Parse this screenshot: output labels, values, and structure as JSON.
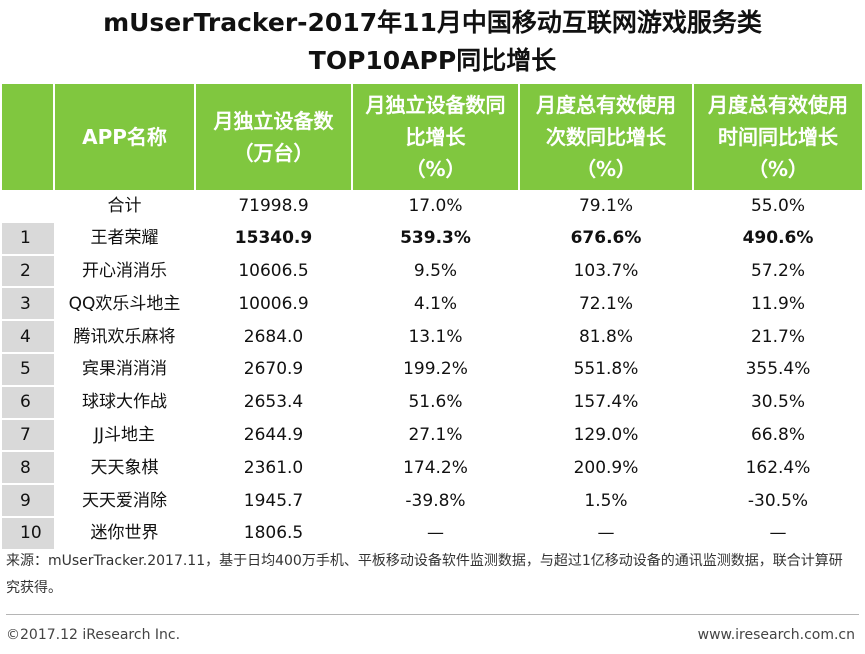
{
  "title_line1": "mUserTracker-2017年11月中国移动互联网游戏服务类",
  "title_line2": "TOP10APP同比增长",
  "chart_data": {
    "type": "table",
    "columns": [
      {
        "key": "rank",
        "header": [
          ""
        ]
      },
      {
        "key": "name",
        "header": [
          "APP名称"
        ]
      },
      {
        "key": "devices",
        "header": [
          "月独立设备数",
          "（万台）"
        ]
      },
      {
        "key": "device_growth",
        "header": [
          "月独立设备数同",
          "比增长",
          "（%）"
        ]
      },
      {
        "key": "usage_count_growth",
        "header": [
          "月度总有效使用",
          "次数同比增长",
          "（%）"
        ]
      },
      {
        "key": "usage_time_growth",
        "header": [
          "月度总有效使用",
          "时间同比增长",
          "（%）"
        ]
      }
    ],
    "rows": [
      {
        "rank": "",
        "name": "合计",
        "devices": "71998.9",
        "device_growth": "17.0%",
        "usage_count_growth": "79.1%",
        "usage_time_growth": "55.0%",
        "bold": false
      },
      {
        "rank": "1",
        "name": "王者荣耀",
        "devices": "15340.9",
        "device_growth": "539.3%",
        "usage_count_growth": "676.6%",
        "usage_time_growth": "490.6%",
        "bold": true
      },
      {
        "rank": "2",
        "name": "开心消消乐",
        "devices": "10606.5",
        "device_growth": "9.5%",
        "usage_count_growth": "103.7%",
        "usage_time_growth": "57.2%",
        "bold": false
      },
      {
        "rank": "3",
        "name": "QQ欢乐斗地主",
        "devices": "10006.9",
        "device_growth": "4.1%",
        "usage_count_growth": "72.1%",
        "usage_time_growth": "11.9%",
        "bold": false
      },
      {
        "rank": "4",
        "name": "腾讯欢乐麻将",
        "devices": "2684.0",
        "device_growth": "13.1%",
        "usage_count_growth": "81.8%",
        "usage_time_growth": "21.7%",
        "bold": false
      },
      {
        "rank": "5",
        "name": "宾果消消消",
        "devices": "2670.9",
        "device_growth": "199.2%",
        "usage_count_growth": "551.8%",
        "usage_time_growth": "355.4%",
        "bold": false
      },
      {
        "rank": "6",
        "name": "球球大作战",
        "devices": "2653.4",
        "device_growth": "51.6%",
        "usage_count_growth": "157.4%",
        "usage_time_growth": "30.5%",
        "bold": false
      },
      {
        "rank": "7",
        "name": "JJ斗地主",
        "devices": "2644.9",
        "device_growth": "27.1%",
        "usage_count_growth": "129.0%",
        "usage_time_growth": "66.8%",
        "bold": false
      },
      {
        "rank": "8",
        "name": "天天象棋",
        "devices": "2361.0",
        "device_growth": "174.2%",
        "usage_count_growth": "200.9%",
        "usage_time_growth": "162.4%",
        "bold": false
      },
      {
        "rank": "9",
        "name": "天天爱消除",
        "devices": "1945.7",
        "device_growth": "-39.8%",
        "usage_count_growth": "1.5%",
        "usage_time_growth": "-30.5%",
        "bold": false
      },
      {
        "rank": "10",
        "name": "迷你世界",
        "devices": "1806.5",
        "device_growth": "—",
        "usage_count_growth": "—",
        "usage_time_growth": "—",
        "bold": false
      }
    ]
  },
  "colors": {
    "header_bg": "#80c73f",
    "rank_bg": "#d9d9d9"
  },
  "source_text": "来源：mUserTracker.2017.11，基于日均400万手机、平板移动设备软件监测数据，与超过1亿移动设备的通讯监测数据，联合计算研究获得。",
  "copyright": "©2017.12 iResearch Inc.",
  "website": "www.iresearch.com.cn"
}
